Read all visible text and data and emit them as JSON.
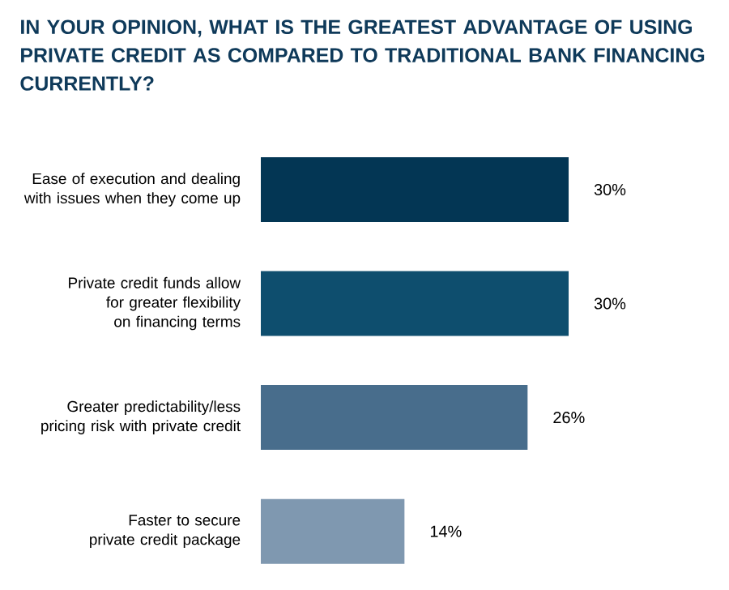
{
  "chart_data": {
    "type": "bar",
    "orientation": "horizontal",
    "title": "IN YOUR OPINION, WHAT IS THE GREATEST ADVANTAGE OF USING PRIVATE CREDIT AS COMPARED TO TRADITIONAL BANK FINANCING CURRENTLY?",
    "categories": [
      "Ease of execution and dealing with issues when they come up",
      "Private credit funds allow for greater flexibility on financing terms",
      "Greater predictability/less pricing risk with private credit",
      "Faster to secure private credit package"
    ],
    "values": [
      30,
      30,
      26,
      14
    ],
    "value_labels": [
      "30%",
      "30%",
      "26%",
      "14%"
    ],
    "colors": [
      "#033654",
      "#0e4e6e",
      "#486d8c",
      "#7f98b0"
    ]
  }
}
